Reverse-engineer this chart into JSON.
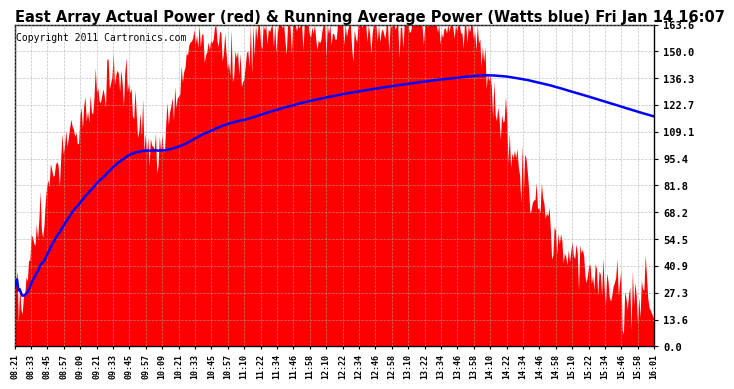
{
  "title": "East Array Actual Power (red) & Running Average Power (Watts blue) Fri Jan 14 16:07",
  "copyright": "Copyright 2011 Cartronics.com",
  "ylim": [
    0.0,
    163.6
  ],
  "yticks": [
    0.0,
    13.6,
    27.3,
    40.9,
    54.5,
    68.2,
    81.8,
    95.4,
    109.1,
    122.7,
    136.3,
    150.0,
    163.6
  ],
  "bar_color": "#FF0000",
  "avg_color": "#0000FF",
  "background_color": "#FFFFFF",
  "grid_color": "#AAAAAA",
  "title_fontsize": 10.5,
  "copyright_fontsize": 7,
  "xtick_labels": [
    "08:21",
    "08:33",
    "08:45",
    "08:57",
    "09:09",
    "09:21",
    "09:33",
    "09:45",
    "09:57",
    "10:09",
    "10:21",
    "10:33",
    "10:45",
    "10:57",
    "11:10",
    "11:22",
    "11:34",
    "11:46",
    "11:58",
    "12:10",
    "12:22",
    "12:34",
    "12:46",
    "12:58",
    "13:10",
    "13:22",
    "13:34",
    "13:46",
    "13:58",
    "14:10",
    "14:22",
    "14:34",
    "14:46",
    "14:58",
    "15:10",
    "15:22",
    "15:34",
    "15:46",
    "15:58",
    "16:01"
  ]
}
